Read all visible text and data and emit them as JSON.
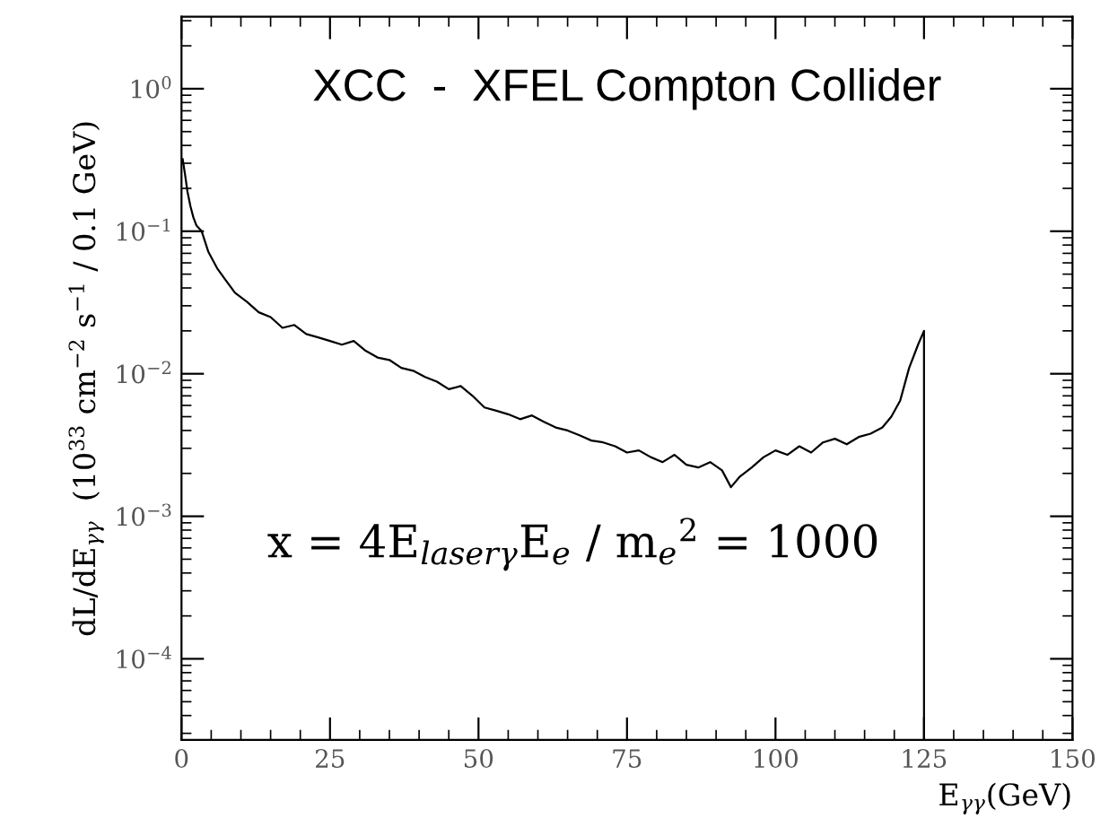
{
  "chart_data": {
    "type": "line",
    "title": "XCC  -  XFEL Compton Collider",
    "xlabel": "E$_{γγ}$(GeV)",
    "ylabel": "dL/dE$_{γγ}$  (10$^{33}$ cm$^{−2}$ s$^{−1}$ / 0.1 GeV)",
    "annotations": [
      "x = 4E$_{laserγ}$E$_{e}$ / m$_{e}$$^{2}$ = 1000"
    ],
    "log": "y",
    "xlim": [
      0,
      150
    ],
    "ylim": [
      2.7e-05,
      3.2
    ],
    "xticks": [
      0,
      25,
      50,
      75,
      100,
      125,
      150
    ],
    "yticks": [
      {
        "value": 0.0001,
        "label": "10$^{−4}$"
      },
      {
        "value": 0.001,
        "label": "10$^{−3}$"
      },
      {
        "value": 0.01,
        "label": "10$^{−2}$"
      },
      {
        "value": 0.1,
        "label": "10$^{−1}$"
      },
      {
        "value": 1,
        "label": "10$^{0}$"
      }
    ],
    "grid": false,
    "legend": false,
    "marker": "none",
    "line_style": "solid",
    "series": [
      {
        "color": "#000000",
        "x": [
          0.2,
          0.6,
          1,
          1.5,
          2,
          2.5,
          3.4,
          4.5,
          6,
          7.5,
          9,
          11,
          13,
          15,
          17,
          19,
          21,
          23,
          25,
          27,
          29,
          31,
          33,
          35,
          37,
          39,
          41,
          43,
          45,
          47,
          49,
          51,
          53,
          55,
          57,
          59,
          61,
          63,
          65,
          67,
          69,
          71,
          73,
          75,
          77,
          79,
          81,
          83,
          85,
          87,
          89,
          91,
          92.5,
          94,
          96,
          98,
          100,
          102,
          104,
          106,
          108,
          110,
          112,
          114,
          116,
          118,
          119.5,
          121,
          122.5,
          124,
          125,
          125
        ],
        "values": [
          0.32,
          0.25,
          0.19,
          0.15,
          0.125,
          0.11,
          0.1,
          0.072,
          0.055,
          0.045,
          0.037,
          0.032,
          0.027,
          0.025,
          0.021,
          0.022,
          0.019,
          0.018,
          0.017,
          0.016,
          0.017,
          0.0145,
          0.013,
          0.0125,
          0.011,
          0.0105,
          0.0095,
          0.0088,
          0.0078,
          0.0082,
          0.007,
          0.0058,
          0.0055,
          0.0052,
          0.0048,
          0.0051,
          0.0046,
          0.0042,
          0.004,
          0.0037,
          0.0034,
          0.0033,
          0.0031,
          0.0028,
          0.0029,
          0.0026,
          0.0024,
          0.0027,
          0.0023,
          0.0022,
          0.0024,
          0.0021,
          0.0016,
          0.0019,
          0.0022,
          0.0026,
          0.0029,
          0.0027,
          0.0031,
          0.0028,
          0.0033,
          0.0035,
          0.0032,
          0.0036,
          0.0038,
          0.0042,
          0.005,
          0.0065,
          0.011,
          0.016,
          0.02,
          2.7e-05
        ]
      }
    ]
  }
}
